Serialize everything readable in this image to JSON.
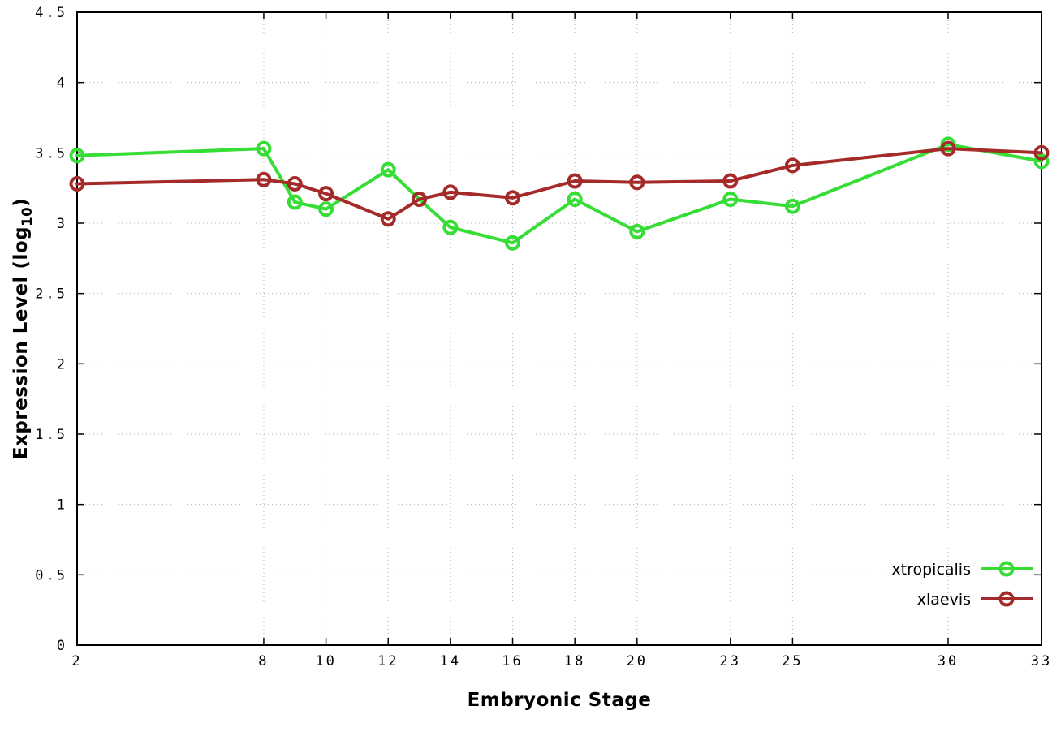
{
  "chart_data": {
    "type": "line",
    "title": "",
    "xlabel": "Embryonic Stage",
    "ylabel": "Expression Level (log10)",
    "ylabel_parts": {
      "prefix": "Expression Level (log",
      "sub": "10",
      "suffix": ")"
    },
    "x": [
      2,
      8,
      9,
      10,
      12,
      13,
      14,
      16,
      18,
      20,
      23,
      25,
      30,
      33
    ],
    "series": [
      {
        "name": "xtropicalis",
        "color": "#35dd35",
        "marker": "open-circle",
        "values": [
          3.48,
          3.53,
          3.15,
          3.1,
          3.38,
          3.17,
          2.97,
          2.86,
          3.17,
          2.94,
          3.17,
          3.12,
          3.56,
          3.44
        ]
      },
      {
        "name": "xlaevis",
        "color": "#a52a2a",
        "marker": "open-circle",
        "values": [
          3.28,
          3.31,
          3.28,
          3.21,
          3.03,
          3.17,
          3.22,
          3.18,
          3.3,
          3.29,
          3.3,
          3.41,
          3.53,
          3.5
        ]
      }
    ],
    "xticks": [
      2,
      8,
      10,
      12,
      14,
      16,
      18,
      20,
      23,
      25,
      30,
      33
    ],
    "yticks": [
      0,
      0.5,
      1,
      1.5,
      2,
      2.5,
      3,
      3.5,
      4,
      4.5
    ],
    "xlim": [
      2,
      33
    ],
    "ylim": [
      0,
      4.5
    ],
    "grid": true,
    "grid_style": "dotted",
    "grid_color": "#b0b0b0",
    "axis_color": "#000000",
    "background": "#ffffff",
    "legend_position": "bottom-right"
  }
}
